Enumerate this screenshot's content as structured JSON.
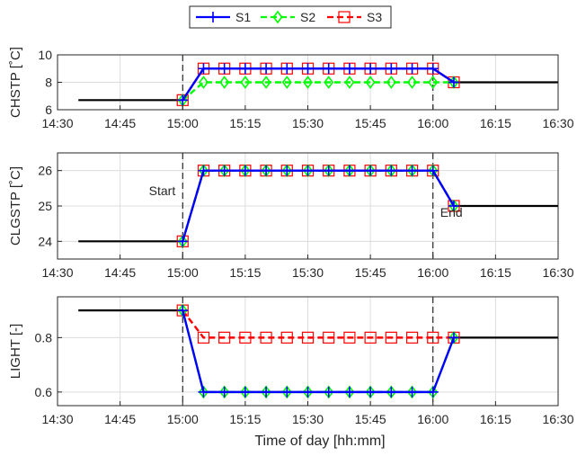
{
  "figure": {
    "xlabel": "Time of day [hh:mm]",
    "x_ticks": [
      "14:30",
      "14:45",
      "15:00",
      "15:15",
      "15:30",
      "15:45",
      "16:00",
      "16:15",
      "16:30"
    ],
    "legend": {
      "placement": "top-center",
      "entries": [
        {
          "name": "S1",
          "color": "#0000ff",
          "style": "solid",
          "marker": "plus"
        },
        {
          "name": "S2",
          "color": "#00ff00",
          "style": "dashed",
          "marker": "diamond"
        },
        {
          "name": "S3",
          "color": "#ff0000",
          "style": "dashed",
          "marker": "square"
        }
      ]
    },
    "baseline_color": "#000000",
    "grid": true
  },
  "chart_data": [
    {
      "type": "line",
      "ylabel": "CHSTP [˚C]",
      "xlim": [
        "14:30",
        "16:30"
      ],
      "ylim": [
        6,
        10
      ],
      "y_ticks": [
        "6",
        "8",
        "10"
      ],
      "event_lines": [
        "15:00",
        "16:00"
      ],
      "annotations": [],
      "baseline": [
        {
          "x": [
            "14:35",
            "15:00"
          ],
          "y": [
            6.7,
            6.7
          ]
        },
        {
          "x": [
            "16:05",
            "16:30"
          ],
          "y": [
            8,
            8
          ]
        }
      ],
      "x": [
        "15:00",
        "15:05",
        "15:10",
        "15:15",
        "15:20",
        "15:25",
        "15:30",
        "15:35",
        "15:40",
        "15:45",
        "15:50",
        "15:55",
        "16:00",
        "16:05"
      ],
      "series": [
        {
          "name": "S1",
          "values": [
            6.7,
            9,
            9,
            9,
            9,
            9,
            9,
            9,
            9,
            9,
            9,
            9,
            9,
            8
          ]
        },
        {
          "name": "S2",
          "values": [
            6.7,
            8,
            8,
            8,
            8,
            8,
            8,
            8,
            8,
            8,
            8,
            8,
            8,
            8
          ]
        },
        {
          "name": "S3",
          "values": [
            6.7,
            9,
            9,
            9,
            9,
            9,
            9,
            9,
            9,
            9,
            9,
            9,
            9,
            8
          ]
        }
      ]
    },
    {
      "type": "line",
      "ylabel": "CLGSTP [˚C]",
      "xlim": [
        "14:30",
        "16:30"
      ],
      "ylim": [
        23.5,
        26.5
      ],
      "y_ticks": [
        "24",
        "25",
        "26"
      ],
      "event_lines": [
        "15:00",
        "16:00"
      ],
      "annotations": [
        "Start",
        "End"
      ],
      "baseline": [
        {
          "x": [
            "14:35",
            "15:00"
          ],
          "y": [
            24,
            24
          ]
        },
        {
          "x": [
            "16:05",
            "16:30"
          ],
          "y": [
            25,
            25
          ]
        }
      ],
      "x": [
        "15:00",
        "15:05",
        "15:10",
        "15:15",
        "15:20",
        "15:25",
        "15:30",
        "15:35",
        "15:40",
        "15:45",
        "15:50",
        "15:55",
        "16:00",
        "16:05"
      ],
      "series": [
        {
          "name": "S1",
          "values": [
            24,
            26,
            26,
            26,
            26,
            26,
            26,
            26,
            26,
            26,
            26,
            26,
            26,
            25
          ]
        },
        {
          "name": "S2",
          "values": [
            24,
            26,
            26,
            26,
            26,
            26,
            26,
            26,
            26,
            26,
            26,
            26,
            26,
            25
          ]
        },
        {
          "name": "S3",
          "values": [
            24,
            26,
            26,
            26,
            26,
            26,
            26,
            26,
            26,
            26,
            26,
            26,
            26,
            25
          ]
        }
      ]
    },
    {
      "type": "line",
      "ylabel": "LIGHT [-]",
      "xlim": [
        "14:30",
        "16:30"
      ],
      "ylim": [
        0.55,
        0.95
      ],
      "y_ticks": [
        "0.6",
        "0.8"
      ],
      "event_lines": [
        "15:00",
        "16:00"
      ],
      "annotations": [],
      "baseline": [
        {
          "x": [
            "14:35",
            "15:00"
          ],
          "y": [
            0.9,
            0.9
          ]
        },
        {
          "x": [
            "16:05",
            "16:30"
          ],
          "y": [
            0.8,
            0.8
          ]
        }
      ],
      "x": [
        "15:00",
        "15:05",
        "15:10",
        "15:15",
        "15:20",
        "15:25",
        "15:30",
        "15:35",
        "15:40",
        "15:45",
        "15:50",
        "15:55",
        "16:00",
        "16:05"
      ],
      "series": [
        {
          "name": "S1",
          "values": [
            0.9,
            0.6,
            0.6,
            0.6,
            0.6,
            0.6,
            0.6,
            0.6,
            0.6,
            0.6,
            0.6,
            0.6,
            0.6,
            0.8
          ]
        },
        {
          "name": "S2",
          "values": [
            0.9,
            0.6,
            0.6,
            0.6,
            0.6,
            0.6,
            0.6,
            0.6,
            0.6,
            0.6,
            0.6,
            0.6,
            0.6,
            0.8
          ]
        },
        {
          "name": "S3",
          "values": [
            0.9,
            0.8,
            0.8,
            0.8,
            0.8,
            0.8,
            0.8,
            0.8,
            0.8,
            0.8,
            0.8,
            0.8,
            0.8,
            0.8
          ]
        }
      ]
    }
  ]
}
